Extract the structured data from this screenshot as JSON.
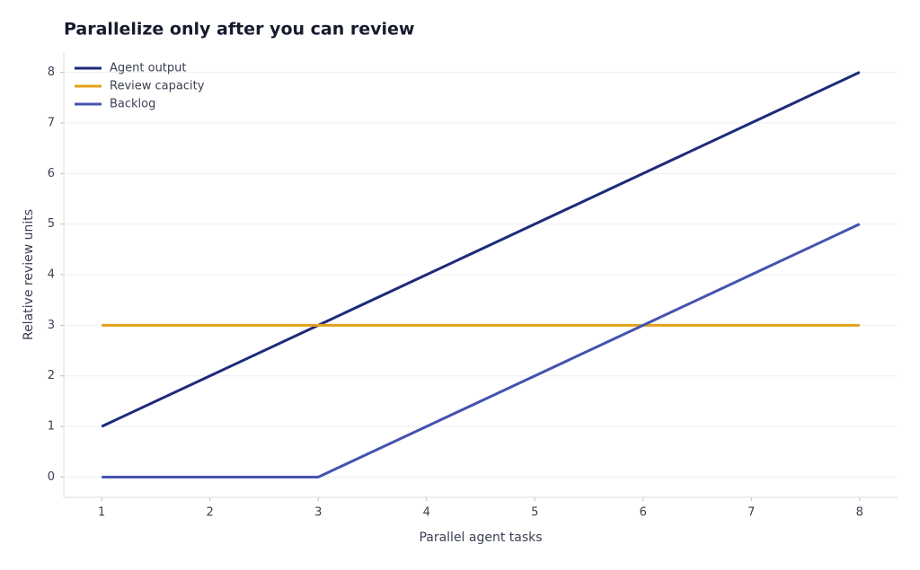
{
  "chart_data": {
    "type": "line",
    "title": "Parallelize only after you can review",
    "x_label": "Parallel agent tasks",
    "y_label": "Relative review units",
    "x": [
      1,
      2,
      3,
      4,
      5,
      6,
      7,
      8
    ],
    "series": [
      {
        "name": "Agent output",
        "color": "#1f2a7a",
        "values": [
          1,
          2,
          3,
          4,
          5,
          6,
          7,
          8
        ]
      },
      {
        "name": "Review capacity",
        "color": "#e3a21a",
        "values": [
          3,
          3,
          3,
          3,
          3,
          3,
          3,
          3
        ]
      },
      {
        "name": "Backlog",
        "color": "#4453b0",
        "values": [
          0,
          0,
          0,
          1,
          2,
          3,
          4,
          5
        ]
      }
    ],
    "xlim": [
      0.65,
      8.35
    ],
    "xticks": [
      1,
      2,
      3,
      4,
      5,
      6,
      7,
      8
    ],
    "ylim": [
      -0.4,
      8.4
    ],
    "yticks": [
      0,
      1,
      2,
      3,
      4,
      5,
      6,
      7,
      8
    ],
    "grid": true,
    "legend": "upper-left"
  }
}
